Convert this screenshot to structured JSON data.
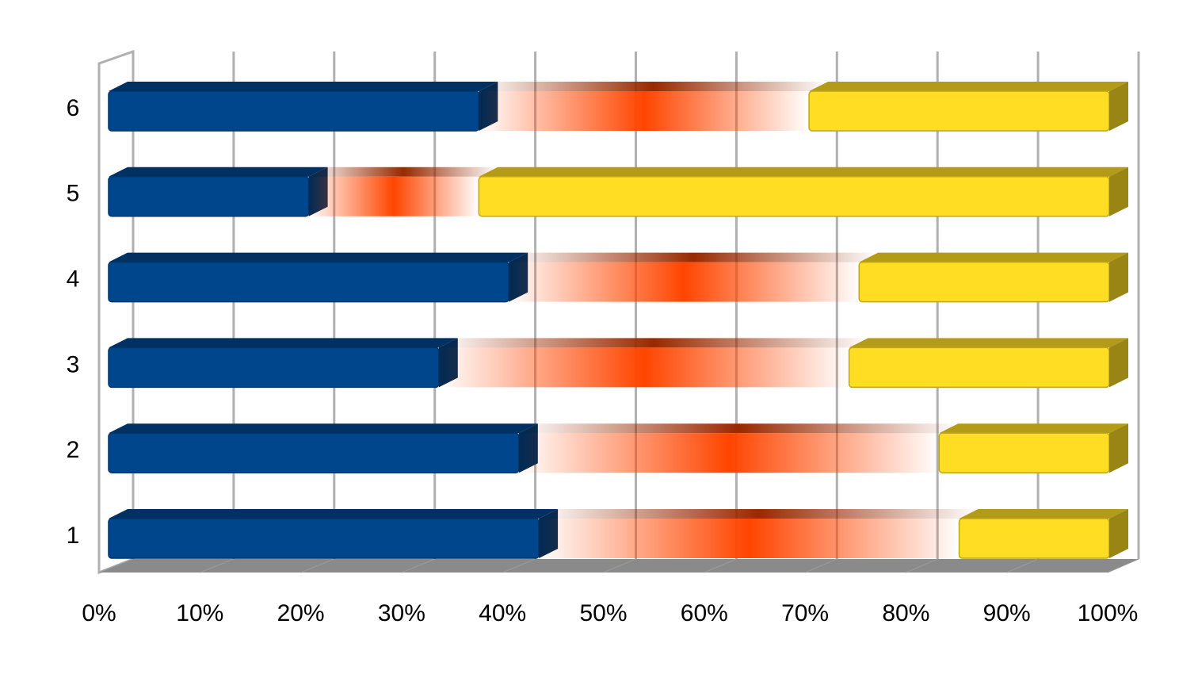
{
  "chart_data": {
    "type": "stacked-bar-horizontal",
    "categories": [
      "1",
      "2",
      "3",
      "4",
      "5",
      "6"
    ],
    "series": [
      {
        "color": "#00468c",
        "values": [
          43,
          41,
          33,
          40,
          20,
          37
        ]
      },
      {
        "color": "#ff4500",
        "values": [
          42,
          42,
          41,
          35,
          17,
          33
        ]
      },
      {
        "color": "#ffdd22",
        "values": [
          15,
          17,
          26,
          25,
          63,
          30
        ]
      }
    ],
    "xlim": [
      0,
      100
    ],
    "xticks": [
      {
        "value": 0,
        "label": "0%"
      },
      {
        "value": 10,
        "label": "10%"
      },
      {
        "value": 20,
        "label": "20%"
      },
      {
        "value": 30,
        "label": "30%"
      },
      {
        "value": 40,
        "label": "40%"
      },
      {
        "value": 50,
        "label": "50%"
      },
      {
        "value": 60,
        "label": "60%"
      },
      {
        "value": 70,
        "label": "70%"
      },
      {
        "value": 80,
        "label": "80%"
      },
      {
        "value": 90,
        "label": "90%"
      },
      {
        "value": 100,
        "label": "100%"
      }
    ],
    "grid": true
  }
}
